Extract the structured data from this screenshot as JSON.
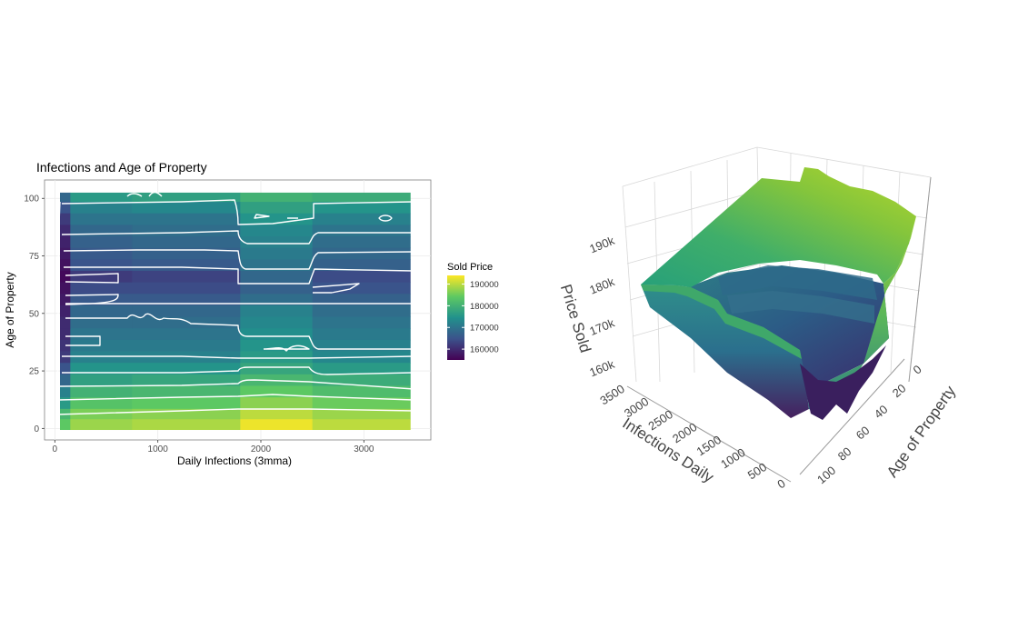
{
  "chart_data": [
    {
      "type": "heatmap",
      "title": "Infections and Age of Property",
      "xlabel": "Daily Infections (3mma)",
      "ylabel": "Age of Property",
      "xlim": [
        -100,
        3650
      ],
      "ylim": [
        -5,
        108
      ],
      "x_ticks": [
        0,
        1000,
        2000,
        3000
      ],
      "y_ticks": [
        0,
        25,
        50,
        75,
        100
      ],
      "grid": true,
      "contours": true,
      "colorbar": {
        "title": "Sold Price",
        "range": [
          155000,
          194000
        ],
        "ticks": [
          160000,
          170000,
          180000,
          190000
        ],
        "tick_labels": [
          "160000",
          "170000",
          "180000",
          "190000"
        ],
        "placement": "right"
      },
      "x_bands": [
        {
          "from": 50,
          "to": 150
        },
        {
          "from": 150,
          "to": 750
        },
        {
          "from": 750,
          "to": 1800
        },
        {
          "from": 1800,
          "to": 2500
        },
        {
          "from": 2500,
          "to": 3450
        }
      ],
      "age_profile": [
        {
          "age": 101,
          "values": [
            168000,
            176000,
            177000,
            180000,
            179000
          ]
        },
        {
          "age": 96,
          "values": [
            165000,
            172000,
            173000,
            177000,
            175000
          ]
        },
        {
          "age": 91,
          "values": [
            162000,
            170000,
            170000,
            175000,
            172000
          ]
        },
        {
          "age": 86,
          "values": [
            160000,
            168000,
            169000,
            173000,
            170000
          ]
        },
        {
          "age": 81,
          "values": [
            159000,
            167000,
            168000,
            172000,
            169000
          ]
        },
        {
          "age": 76,
          "values": [
            158000,
            166000,
            167000,
            171000,
            168000
          ]
        },
        {
          "age": 71,
          "values": [
            157000,
            165000,
            166000,
            170000,
            167000
          ]
        },
        {
          "age": 66,
          "values": [
            156000,
            162000,
            163000,
            168000,
            164000
          ]
        },
        {
          "age": 61,
          "values": [
            157000,
            164000,
            164000,
            167000,
            165000
          ]
        },
        {
          "age": 56,
          "values": [
            158000,
            166000,
            166000,
            169000,
            167000
          ]
        },
        {
          "age": 51,
          "values": [
            159000,
            168000,
            168000,
            172000,
            169000
          ]
        },
        {
          "age": 46,
          "values": [
            160000,
            169000,
            169000,
            173000,
            170000
          ]
        },
        {
          "age": 41,
          "values": [
            160000,
            170000,
            170000,
            174000,
            171000
          ]
        },
        {
          "age": 36,
          "values": [
            161000,
            171000,
            171000,
            175000,
            172000
          ]
        },
        {
          "age": 31,
          "values": [
            162000,
            172000,
            172000,
            176000,
            173000
          ]
        },
        {
          "age": 26,
          "values": [
            165000,
            175000,
            175000,
            178000,
            176000
          ]
        },
        {
          "age": 21,
          "values": [
            168000,
            177000,
            178000,
            181000,
            179000
          ]
        },
        {
          "age": 16,
          "values": [
            172000,
            180000,
            181000,
            184000,
            182000
          ]
        },
        {
          "age": 11,
          "values": [
            176000,
            183000,
            184000,
            187000,
            185000
          ]
        },
        {
          "age": 6,
          "values": [
            181000,
            186000,
            187000,
            190000,
            188000
          ]
        },
        {
          "age": 2,
          "values": [
            184000,
            188000,
            189000,
            193000,
            190000
          ]
        }
      ]
    },
    {
      "type": "surface3d",
      "zlabel": "Price Sold",
      "xlabel": "Infections Daily",
      "ylabel": "Age of Property",
      "z_ticks": [
        160000,
        170000,
        180000,
        190000
      ],
      "z_tick_labels": [
        "160k",
        "170k",
        "180k",
        "190k"
      ],
      "x_ticks": [
        0,
        500,
        1000,
        1500,
        2000,
        2500,
        3000,
        3500
      ],
      "x_tick_labels": [
        "0",
        "500",
        "1000",
        "1500",
        "2000",
        "2500",
        "3000",
        "3500"
      ],
      "y_ticks": [
        0,
        20,
        40,
        60,
        80,
        100
      ],
      "y_tick_labels": [
        "0",
        "20",
        "40",
        "60",
        "80",
        "100"
      ],
      "colors": [
        "#440154",
        "#3b528b",
        "#21918c",
        "#5ec962",
        "#fde725"
      ]
    }
  ]
}
